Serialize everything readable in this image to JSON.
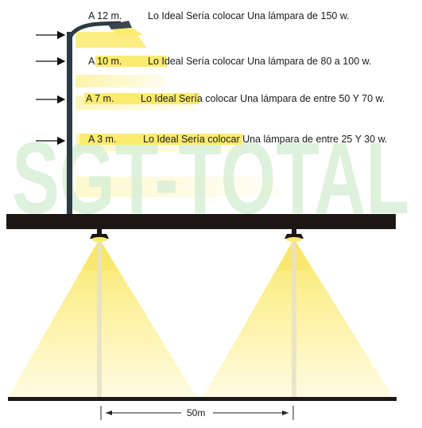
{
  "watermark": "SGT-TOTAL",
  "rows": [
    {
      "height": "A 12 m.",
      "text": "Lo Ideal Sería colocar Una lámpara de 150 w."
    },
    {
      "height": "A 10 m.",
      "text": "Lo Ideal Sería colocar Una lámpara de 80 a 100 w."
    },
    {
      "height": "A 7 m.",
      "text": "Lo Ideal Sería colocar Una lámpara de entre 50 Y 70 w."
    },
    {
      "height": "A 3 m.",
      "text": "Lo Ideal Sería colocar Una lámpara de entre 25 Y 30 w."
    }
  ],
  "distance_label": "50m",
  "colors": {
    "light": "#fbeb6e",
    "beam": "#fff49a",
    "beam_dark": "#f6e35a",
    "pole": "#2e3a44",
    "beam_bar": "#1c1715",
    "watermark": "#d9efd6"
  }
}
